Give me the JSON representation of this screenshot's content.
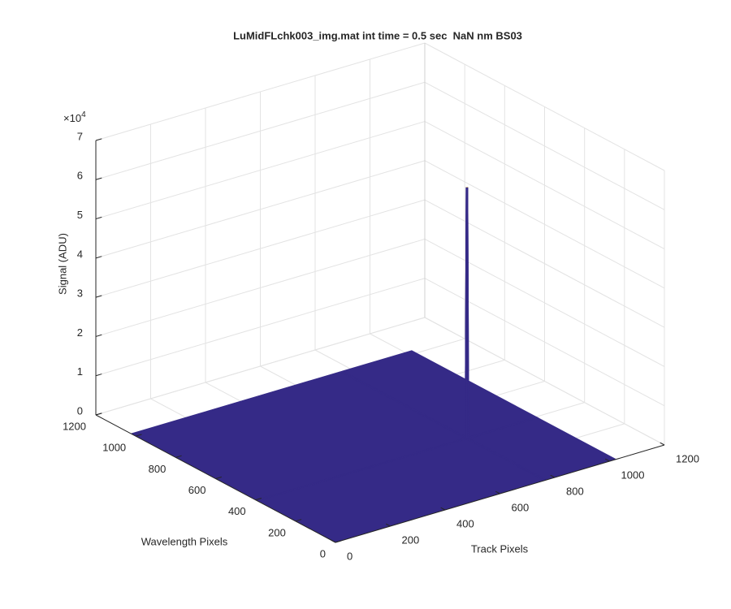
{
  "chart_data": {
    "type": "surface3d",
    "title": "LuMidFLchk003_img.mat int time = 0.5 sec  NaN nm BS03",
    "xlabel": "Track Pixels",
    "ylabel": "Wavelength Pixels",
    "zlabel": "Signal (ADU)",
    "zscale_label": "×10",
    "zscale_power": "4",
    "xlim": [
      0,
      1200
    ],
    "ylim": [
      0,
      1200
    ],
    "zlim": [
      0,
      70000
    ],
    "xticks": [
      0,
      200,
      400,
      600,
      800,
      1000,
      1200
    ],
    "yticks": [
      0,
      200,
      400,
      600,
      800,
      1000,
      1200
    ],
    "zticks": [
      {
        "value": 0,
        "label": "0"
      },
      {
        "value": 10000,
        "label": "1"
      },
      {
        "value": 20000,
        "label": "2"
      },
      {
        "value": 30000,
        "label": "3"
      },
      {
        "value": 40000,
        "label": "4"
      },
      {
        "value": 50000,
        "label": "5"
      },
      {
        "value": 60000,
        "label": "6"
      },
      {
        "value": 70000,
        "label": "7"
      }
    ],
    "grid": true,
    "colormap": [
      "#352a87",
      "#0f5cdd",
      "#1481d6",
      "#06a4ca",
      "#2eb7a4",
      "#87bf77",
      "#d1bb59",
      "#fec832",
      "#f9fb0e"
    ],
    "x": [
      1,
      760,
      764,
      768,
      772,
      1024
    ],
    "y": [
      1,
      387,
      391,
      395,
      399,
      1024
    ],
    "z": [
      [
        0,
        0,
        0,
        0,
        0,
        0
      ],
      [
        0,
        0,
        0,
        0,
        0,
        0
      ],
      [
        0,
        0,
        64000,
        64000,
        0,
        0
      ],
      [
        0,
        0,
        64000,
        64000,
        0,
        0
      ],
      [
        0,
        0,
        0,
        0,
        0,
        0
      ],
      [
        0,
        0,
        0,
        0,
        0,
        0
      ]
    ]
  }
}
